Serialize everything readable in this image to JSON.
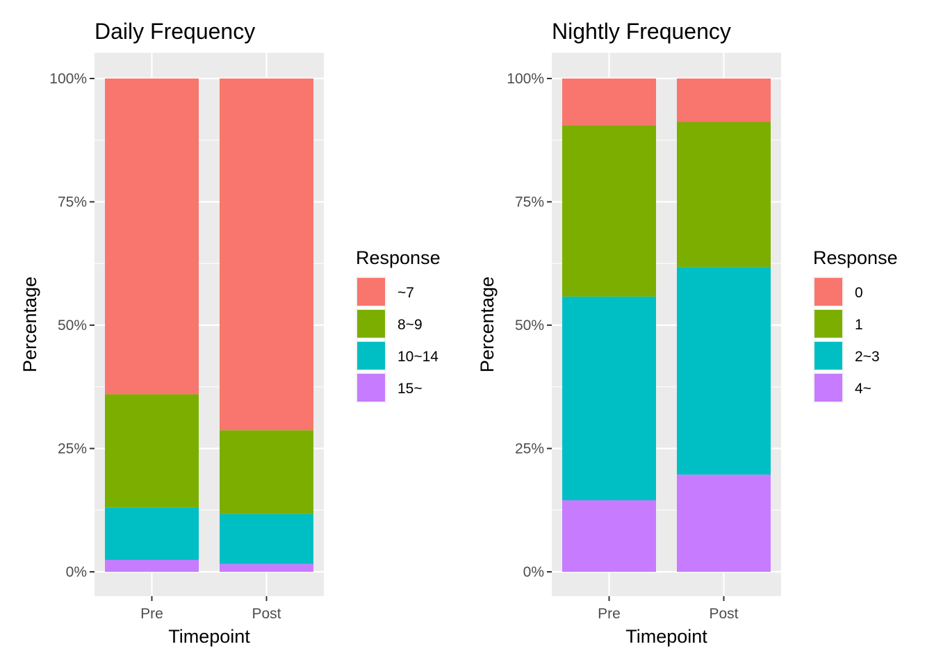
{
  "chart_data": [
    {
      "type": "bar",
      "stacked": true,
      "title": "Daily Frequency",
      "xlabel": "Timepoint",
      "ylabel": "Percentage",
      "categories": [
        "Pre",
        "Post"
      ],
      "ylim": [
        0,
        100
      ],
      "yticks": [
        0,
        25,
        50,
        75,
        100
      ],
      "ytick_labels": [
        "0%",
        "25%",
        "50%",
        "75%",
        "100%"
      ],
      "legend_title": "Response",
      "legend_position": "right",
      "series": [
        {
          "name": "~7",
          "color": "#F8766D",
          "values": [
            64.0,
            71.3
          ]
        },
        {
          "name": "8~9",
          "color": "#7CAE00",
          "values": [
            23.0,
            17.0
          ]
        },
        {
          "name": "10~14",
          "color": "#00BFC4",
          "values": [
            10.6,
            10.1
          ]
        },
        {
          "name": "15~",
          "color": "#C77CFF",
          "values": [
            2.4,
            1.6
          ]
        }
      ]
    },
    {
      "type": "bar",
      "stacked": true,
      "title": "Nightly Frequency",
      "xlabel": "Timepoint",
      "ylabel": "Percentage",
      "categories": [
        "Pre",
        "Post"
      ],
      "ylim": [
        0,
        100
      ],
      "yticks": [
        0,
        25,
        50,
        75,
        100
      ],
      "ytick_labels": [
        "0%",
        "25%",
        "50%",
        "75%",
        "100%"
      ],
      "legend_title": "Response",
      "legend_position": "right",
      "series": [
        {
          "name": "0",
          "color": "#F8766D",
          "values": [
            9.5,
            8.8
          ]
        },
        {
          "name": "1",
          "color": "#7CAE00",
          "values": [
            34.7,
            29.4
          ]
        },
        {
          "name": "2~3",
          "color": "#00BFC4",
          "values": [
            41.3,
            42.1
          ]
        },
        {
          "name": "4~",
          "color": "#C77CFF",
          "values": [
            14.5,
            19.7
          ]
        }
      ]
    }
  ]
}
